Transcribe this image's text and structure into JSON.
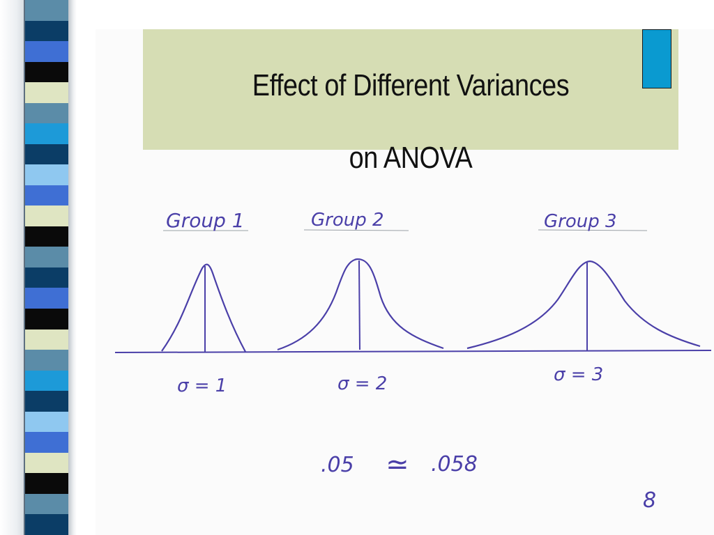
{
  "slide": {
    "title_line_1": "Effect of Different Variances",
    "title_line_2": "on ANOVA"
  },
  "sketch": {
    "groups": [
      {
        "label": "Group 1",
        "sigma_label": "σ = 1",
        "sigma": 1
      },
      {
        "label": "Group 2",
        "sigma_label": "σ = 2",
        "sigma": 2
      },
      {
        "label": "Group 3",
        "sigma_label": "σ = 3",
        "sigma": 3
      }
    ],
    "note_left": ".05",
    "note_symbol": "≃",
    "note_right": ".058",
    "page_number": "8"
  },
  "colors": {
    "ink": "#4a3fa8",
    "title_box": "#d6ddb4",
    "corner_square": "#0a9ad0",
    "stripes": [
      "#5b8ca8",
      "#0b3d66",
      "#3f6fd4",
      "#0a0a0a",
      "#dfe5c2",
      "#5b8ca8",
      "#1d9ad8",
      "#0b3d66",
      "#8fc8f0",
      "#3f6fd4",
      "#dfe5c2",
      "#0a0a0a"
    ]
  }
}
